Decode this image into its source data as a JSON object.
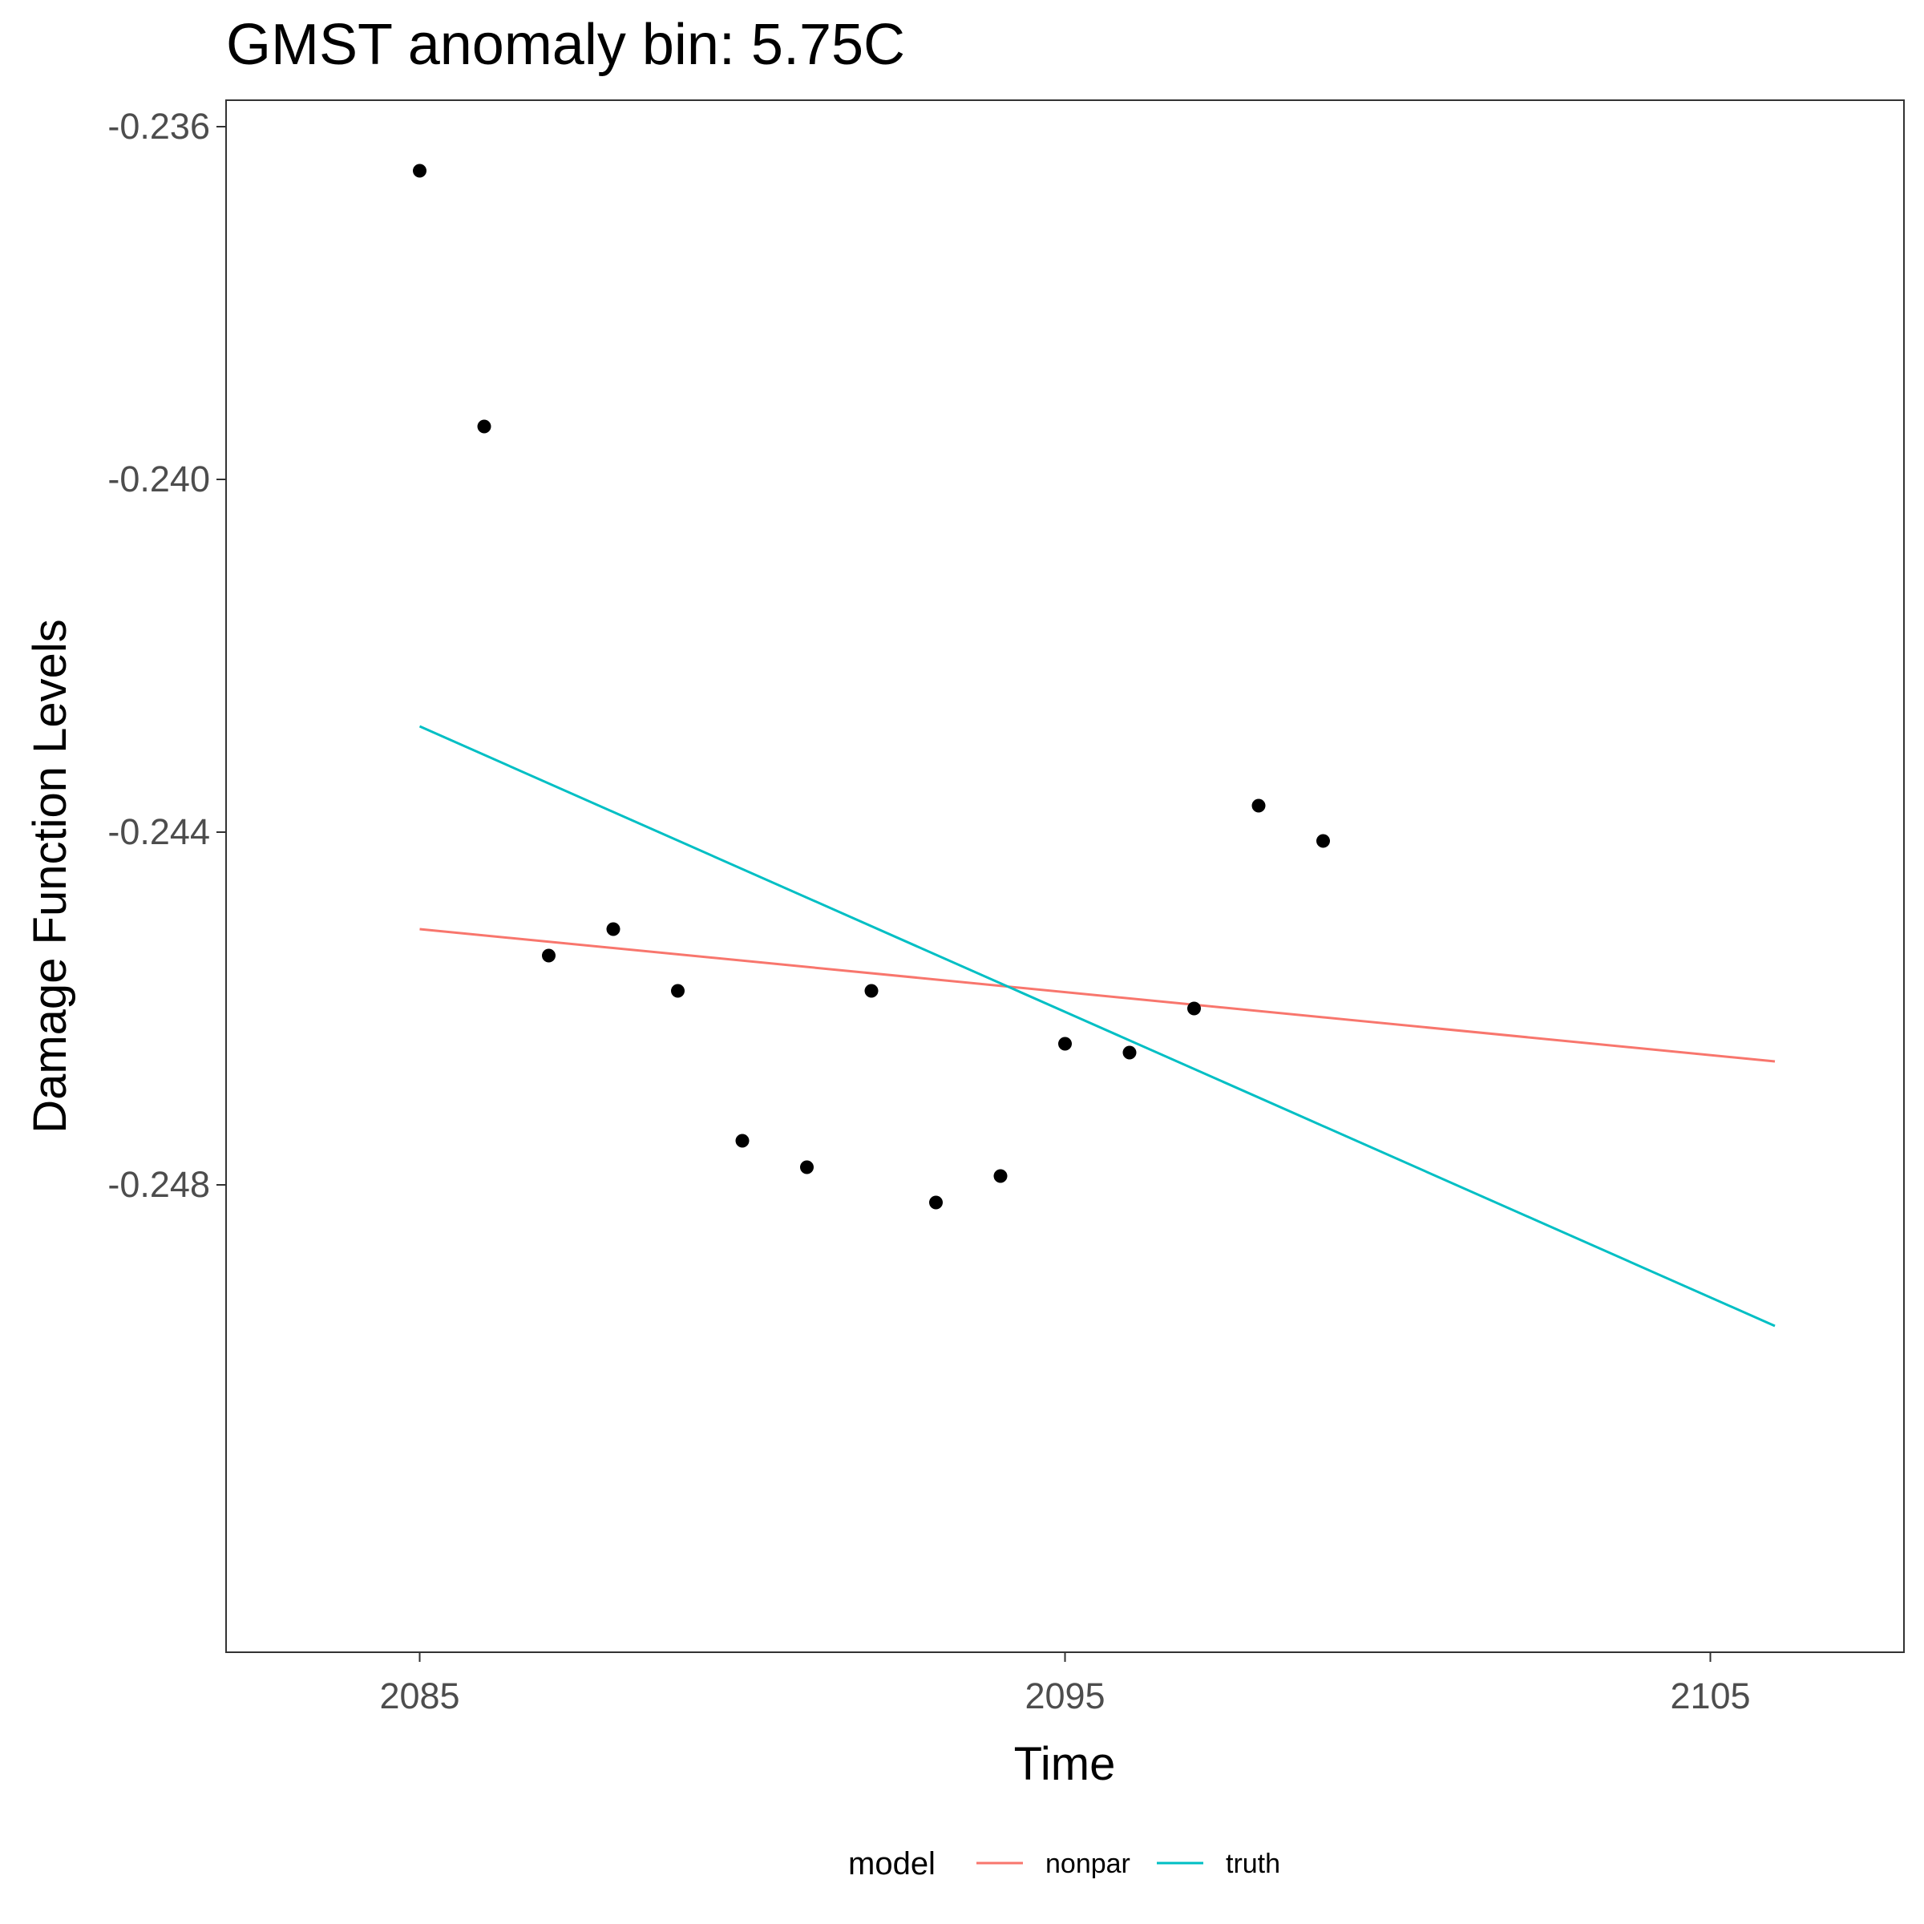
{
  "chart_data": {
    "type": "scatter",
    "title": "GMST anomaly bin: 5.75C",
    "xlabel": "Time",
    "ylabel": "Damage Function Levels",
    "xlim": [
      2082,
      2108
    ],
    "ylim": [
      -0.2533,
      -0.2357
    ],
    "x_ticks": [
      2085,
      2095,
      2105
    ],
    "y_ticks": [
      -0.236,
      -0.24,
      -0.244,
      -0.248
    ],
    "x_tick_labels": [
      "2085",
      "2095",
      "2105"
    ],
    "y_tick_labels": [
      "-0.236",
      "-0.240",
      "-0.244",
      "-0.248"
    ],
    "grid": false,
    "legend": {
      "title": "model",
      "position": "bottom"
    },
    "points": {
      "x": [
        2085,
        2086,
        2087,
        2088,
        2089,
        2090,
        2091,
        2092,
        2093,
        2094,
        2095,
        2096,
        2097,
        2098,
        2099
      ],
      "y": [
        -0.2365,
        -0.2394,
        -0.2454,
        -0.2451,
        -0.2458,
        -0.2475,
        -0.2478,
        -0.2458,
        -0.2482,
        -0.2479,
        -0.2464,
        -0.2465,
        -0.246,
        -0.2437,
        -0.2441
      ]
    },
    "series": [
      {
        "name": "nonpar",
        "color": "#F8766D",
        "x": [
          2085,
          2106
        ],
        "y": [
          -0.2451,
          -0.2466
        ]
      },
      {
        "name": "truth",
        "color": "#00BFC4",
        "x": [
          2085,
          2106
        ],
        "y": [
          -0.2428,
          -0.2496
        ]
      }
    ]
  }
}
